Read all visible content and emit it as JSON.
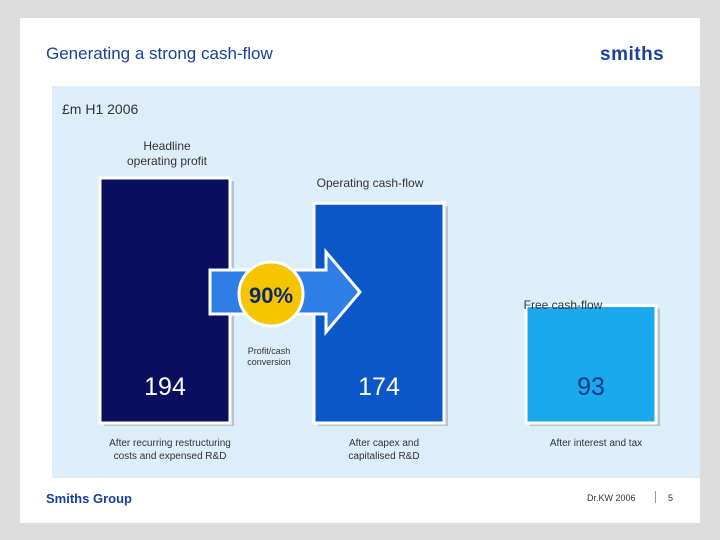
{
  "slide": {
    "title": "Generating a strong cash-flow",
    "logo_text": "smiths",
    "subtitle": "£m H1 2006",
    "footer_company": "Smiths Group",
    "footer_code": "Dr.KW 2006",
    "page_number": "5"
  },
  "chart_data": {
    "type": "bar",
    "categories": [
      "Headline operating profit",
      "Operating cash-flow",
      "Free cash-flow"
    ],
    "values": [
      194,
      174,
      93
    ],
    "value_labels": [
      "194",
      "174",
      "93"
    ],
    "category_labels": [
      [
        "Headline",
        "operating profit"
      ],
      [
        "Operating cash-flow"
      ],
      [
        "Free cash-flow"
      ]
    ],
    "notes": [
      [
        "After recurring restructuring",
        "costs and expensed R&D"
      ],
      [
        "After capex and",
        "capitalised R&D"
      ],
      [
        "After interest and tax"
      ]
    ],
    "annotation": {
      "value": "90%",
      "caption": [
        "Profit/cash",
        "conversion"
      ]
    },
    "ylim": [
      0,
      194
    ],
    "colors": [
      "#0a0e5e",
      "#0b57c8",
      "#19a9ec"
    ],
    "value_text_colors": [
      "#ffffff",
      "#ffffff",
      "#0b3a8a"
    ],
    "title": "",
    "xlabel": "",
    "ylabel": ""
  },
  "colors": {
    "accent": "#1a3f9c",
    "panel": "#dbeefa",
    "badge": "#f6c500"
  }
}
